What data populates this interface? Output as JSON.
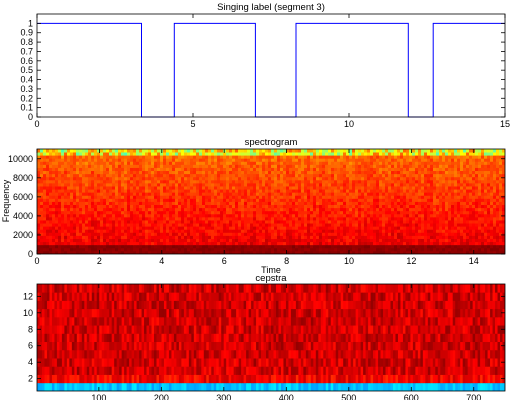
{
  "chart_data": [
    {
      "type": "line",
      "title": "Singing label (segment 3)",
      "xlabel": "",
      "ylabel": "",
      "xlim": [
        0,
        15
      ],
      "ylim": [
        0,
        1.1
      ],
      "xticks": [
        0,
        5,
        10,
        15
      ],
      "yticks": [
        0,
        0.1,
        0.2,
        0.3,
        0.4,
        0.5,
        0.6,
        0.7,
        0.8,
        0.9,
        1
      ],
      "ytick_labels": [
        "0",
        "0.1",
        "0.2",
        "0.3",
        "0.4",
        "0.5",
        "0.6",
        "0.7",
        "0.8",
        "0.9",
        "1"
      ],
      "color": "#0000ff",
      "grid": false,
      "series": [
        {
          "x": [
            0,
            3.35,
            3.35,
            4.4,
            4.4,
            7.0,
            7.0,
            8.3,
            8.3,
            11.9,
            11.9,
            12.7,
            12.7,
            15
          ],
          "y": [
            1,
            1,
            0,
            0,
            1,
            1,
            0,
            0,
            1,
            1,
            0,
            0,
            1,
            1
          ]
        }
      ]
    },
    {
      "type": "heatmap",
      "title": "spectrogram",
      "xlabel": "Time",
      "ylabel": "Frequency",
      "xlim": [
        0,
        15
      ],
      "ylim": [
        0,
        11025
      ],
      "xticks": [
        0,
        2,
        4,
        6,
        8,
        10,
        12,
        14
      ],
      "yticks": [
        0,
        2000,
        4000,
        6000,
        8000,
        10000
      ],
      "colormap": "jet",
      "grid": false
    },
    {
      "type": "heatmap",
      "title": "cepstra",
      "xlabel": "",
      "ylabel": "",
      "xlim": [
        1,
        750
      ],
      "ylim": [
        0.5,
        13.5
      ],
      "xticks": [
        100,
        200,
        300,
        400,
        500,
        600,
        700
      ],
      "yticks": [
        2,
        4,
        6,
        8,
        10,
        12
      ],
      "colormap": "jet",
      "grid": false
    }
  ]
}
